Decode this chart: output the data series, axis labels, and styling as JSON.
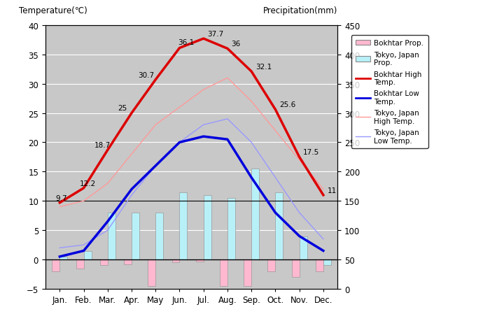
{
  "months": [
    "Jan.",
    "Feb.",
    "Mar.",
    "Apr.",
    "May",
    "Jun.",
    "Jul.",
    "Aug.",
    "Sep.",
    "Oct.",
    "Nov.",
    "Dec."
  ],
  "bokhtar_high": [
    9.7,
    12.2,
    18.7,
    25,
    30.7,
    36.1,
    37.7,
    36,
    32.1,
    25.6,
    17.5,
    11
  ],
  "bokhtar_low": [
    0.5,
    1.5,
    6.5,
    12,
    16,
    20,
    21,
    20.5,
    14,
    8,
    4,
    1.5
  ],
  "tokyo_high": [
    9,
    10,
    13,
    18,
    23,
    26,
    29,
    31,
    27,
    22,
    17,
    12
  ],
  "tokyo_low": [
    2,
    2.5,
    5,
    11,
    16,
    20,
    23,
    24,
    20,
    14,
    8,
    3.5
  ],
  "bokhtar_prcp_left": [
    -2.0,
    -1.5,
    -1.0,
    -0.8,
    -4.5,
    -0.5,
    -0.3,
    -4.5,
    -4.5,
    -2.0,
    -3.0,
    -2.0
  ],
  "tokyo_prcp_left": [
    0.5,
    1.5,
    8.0,
    8.0,
    8.0,
    11.5,
    11.0,
    10.5,
    15.5,
    11.5,
    4.0,
    -1.0
  ],
  "bg_color": "#c8c8c8",
  "bokhtar_high_color": "#dd0000",
  "bokhtar_low_color": "#0000dd",
  "tokyo_high_color": "#ff9999",
  "tokyo_low_color": "#9999ff",
  "bokhtar_prcp_color": "#ffb8d0",
  "tokyo_prcp_color": "#b8f0f8",
  "ylim_left": [
    -5,
    40
  ],
  "ylim_right": [
    0,
    450
  ],
  "title_left": "Temperature(℃)",
  "title_right": "Precipitation(mm)",
  "label_bokhtar_prcp": "Bokhtar Prop.",
  "label_tokyo_prcp": "Tokyo, Japan\nProp.",
  "label_bokhtar_high": "Bokhtar High\nTemp.",
  "label_bokhtar_low": "Bokhtar Low\nTemp.",
  "label_tokyo_high": "Tokyo, Japan\nHigh Temp.",
  "label_tokyo_low": "Tokyo, Japan\nLow Temp.",
  "annot_bokhtar_high": [
    9.7,
    12.2,
    18.7,
    25,
    30.7,
    36.1,
    37.7,
    36,
    32.1,
    25.6,
    17.5,
    11
  ]
}
